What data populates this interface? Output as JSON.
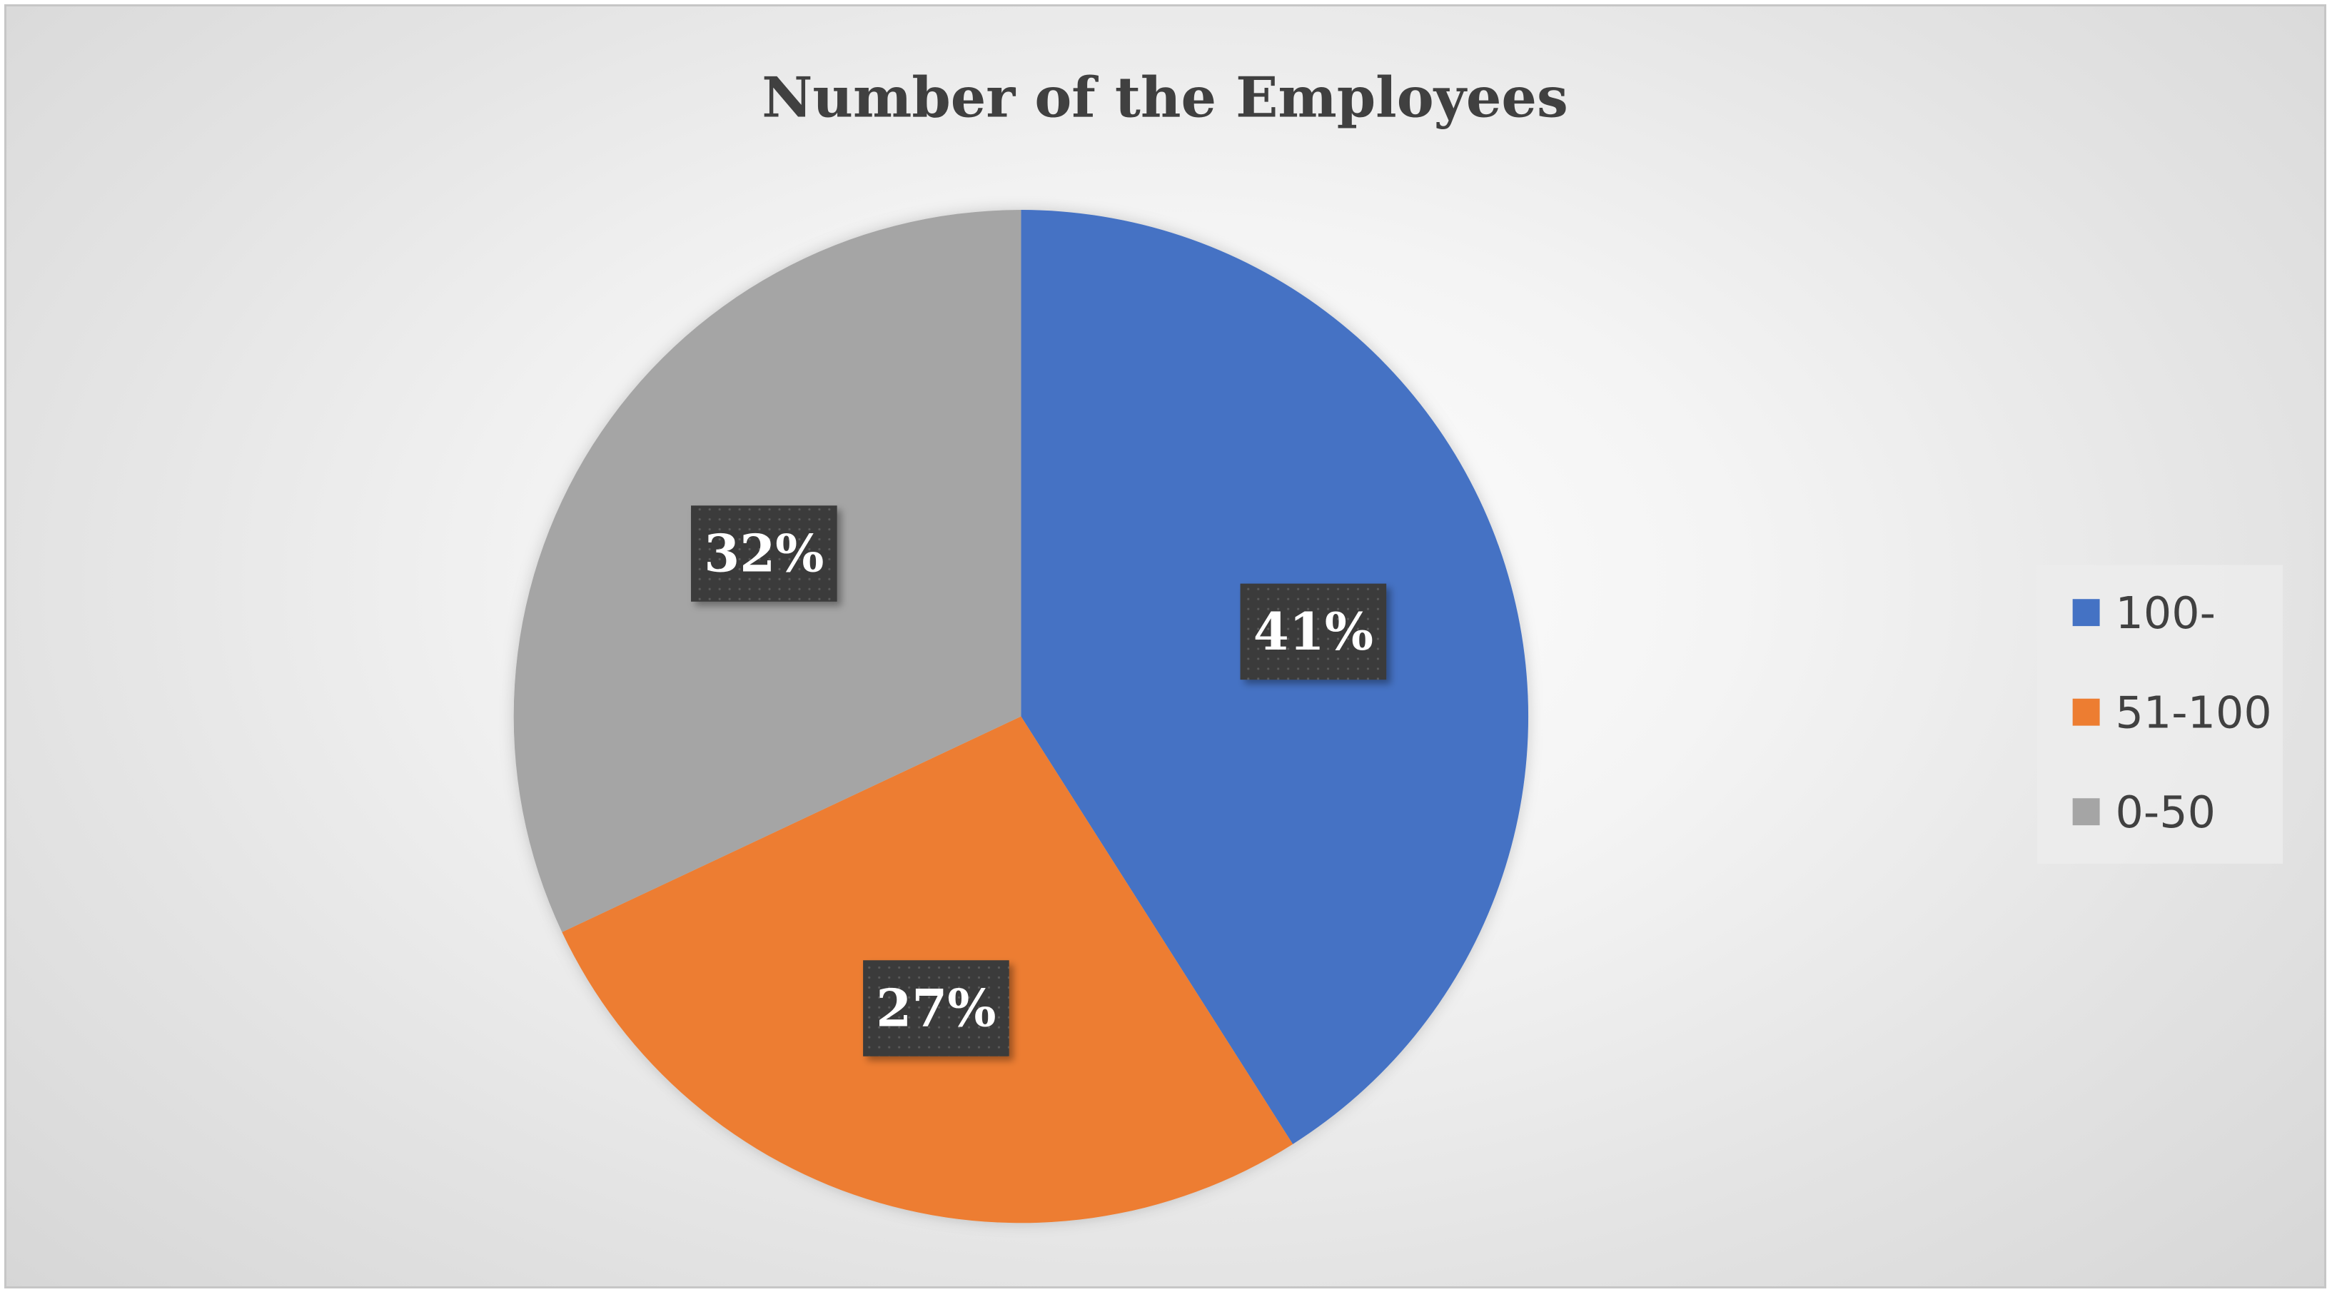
{
  "chart_data": {
    "type": "pie",
    "title": "Number of the Employees",
    "categories": [
      "100-",
      "51-100",
      "0-50"
    ],
    "values": [
      41,
      27,
      32
    ],
    "labels": [
      "41%",
      "27%",
      "32%"
    ],
    "colors": [
      "#4472C4",
      "#ED7D31",
      "#A5A5A5"
    ],
    "legend": {
      "position": "right",
      "entries": [
        "100-",
        "51-100",
        "0-50"
      ]
    },
    "start_angle": "12 o'clock",
    "direction": "clockwise"
  }
}
